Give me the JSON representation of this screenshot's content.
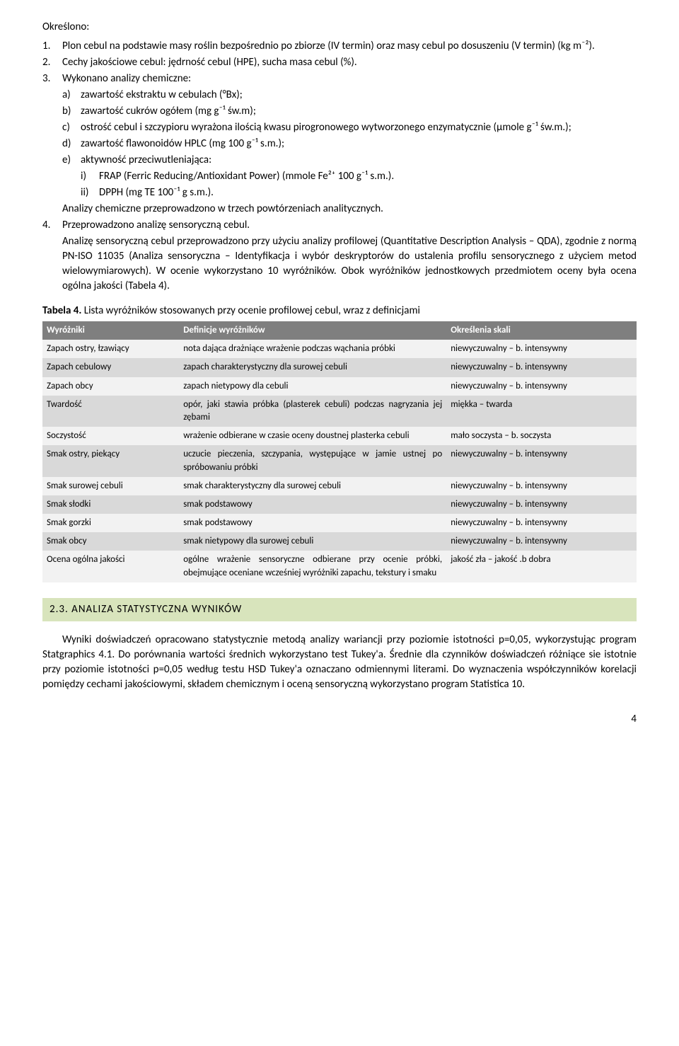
{
  "intro": {
    "heading": "Określono:",
    "items": [
      {
        "n": "1.",
        "text": "Plon cebul na podstawie masy roślin bezpośrednio po zbiorze (IV termin) oraz masy cebul po dosuszeniu (V termin) (kg m⁻²)."
      },
      {
        "n": "2.",
        "text": "Cechy jakościowe cebul: jędrność cebul (HPE), sucha masa cebul (%)."
      },
      {
        "n": "3.",
        "text": "Wykonano analizy chemiczne:"
      }
    ],
    "sub3": [
      {
        "l": "a)",
        "text": "zawartość ekstraktu w cebulach (°Bx);"
      },
      {
        "l": "b)",
        "text": "zawartość cukrów ogółem (mg g⁻¹ św.m);"
      },
      {
        "l": "c)",
        "text": "ostrość cebul i szczypioru wyrażona ilością kwasu pirogronowego wytworzonego enzymatycznie (µmole g⁻¹ św.m.);"
      },
      {
        "l": "d)",
        "text": "zawartość flawonoidów HPLC (mg 100 g⁻¹ s.m.);"
      },
      {
        "l": "e)",
        "text": "aktywność przeciwutleniająca:"
      }
    ],
    "sub3e": [
      {
        "i": "i)",
        "text": "FRAP (Ferric Reducing/Antioxidant Power) (mmole Fe²⁺ 100 g⁻¹ s.m.)."
      },
      {
        "i": "ii)",
        "text": "DPPH (mg TE 100⁻¹ g s.m.)."
      }
    ],
    "analyses_note": "Analizy chemiczne przeprowadzono w trzech powtórzeniach analitycznych.",
    "item4": {
      "n": "4.",
      "text": "Przeprowadzono analizę sensoryczną cebul."
    },
    "para4": "Analizę sensoryczną cebul przeprowadzono przy użyciu analizy profilowej (Quantitative Description Analysis – QDA), zgodnie z normą PN-ISO 11035 (Analiza sensoryczna – Identyfikacja i wybór deskryptorów do ustalenia profilu sensorycznego z użyciem metod wielowymiarowych). W ocenie wykorzystano 10 wyróżników. Obok wyróżników jednostkowych przedmiotem oceny była ocena ogólna jakości (Tabela 4)."
  },
  "table": {
    "caption_bold": "Tabela 4.",
    "caption_rest": " Lista wyróżników stosowanych przy ocenie profilowej cebul, wraz z definicjami",
    "headers": [
      "Wyróżniki",
      "Definicje wyróżników",
      "Określenia skali"
    ],
    "rows": [
      {
        "shade": "light",
        "c1": "Zapach ostry, łzawiący",
        "c2": "nota dająca drażniące wrażenie podczas wąchania próbki",
        "c3": "niewyczuwalny – b. intensywny"
      },
      {
        "shade": "shade",
        "c1": "Zapach cebulowy",
        "c2": "zapach charakterystyczny dla surowej cebuli",
        "c3": "niewyczuwalny – b. intensywny"
      },
      {
        "shade": "light",
        "c1": "Zapach obcy",
        "c2": "zapach nietypowy dla cebuli",
        "c3": "niewyczuwalny – b. intensywny"
      },
      {
        "shade": "shade",
        "c1": "Twardość",
        "c2": "opór, jaki stawia próbka (plasterek cebuli) podczas nagryzania jej zębami",
        "c3": "miękka – twarda"
      },
      {
        "shade": "light",
        "c1": "Soczystość",
        "c2": "wrażenie odbierane w czasie oceny doustnej plasterka cebuli",
        "c3": "mało soczysta – b. soczysta"
      },
      {
        "shade": "shade",
        "c1": "Smak ostry, piekący",
        "c2": "uczucie pieczenia, szczypania, występujące w jamie ustnej po spróbowaniu próbki",
        "c3": "niewyczuwalny – b. intensywny"
      },
      {
        "shade": "light",
        "c1": "Smak surowej cebuli",
        "c2": "smak charakterystyczny dla surowej cebuli",
        "c3": "niewyczuwalny – b. intensywny"
      },
      {
        "shade": "shade",
        "c1": "Smak słodki",
        "c2": "smak podstawowy",
        "c3": "niewyczuwalny – b. intensywny"
      },
      {
        "shade": "light",
        "c1": "Smak gorzki",
        "c2": "smak podstawowy",
        "c3": "niewyczuwalny – b. intensywny"
      },
      {
        "shade": "shade",
        "c1": "Smak obcy",
        "c2": "smak nietypowy dla surowej cebuli",
        "c3": "niewyczuwalny – b. intensywny"
      },
      {
        "shade": "light",
        "c1": "Ocena ogólna jakości",
        "c2": "ogólne wrażenie sensoryczne odbierane przy ocenie próbki, obejmujące oceniane wcześniej wyróżniki zapachu, tekstury i smaku",
        "c3": "jakość zła – jakość .b dobra"
      }
    ]
  },
  "section": {
    "heading": "2.3. ANALIZA STATYSTYCZNA WYNIKÓW",
    "para": "Wyniki doświadczeń opracowano statystycznie metodą analizy wariancji przy poziomie istotności p=0,05, wykorzystując program Statgraphics 4.1. Do porównania wartości średnich wykorzystano test Tukey'a. Średnie dla czynników doświadczeń różniące sie istotnie przy poziomie istotności p=0,05 według testu HSD Tukey'a oznaczano odmiennymi literami. Do wyznaczenia współczynników korelacji pomiędzy cechami jakościowymi, składem chemicznym i oceną sensoryczną wykorzystano program Statistica 10."
  },
  "page_number": "4"
}
